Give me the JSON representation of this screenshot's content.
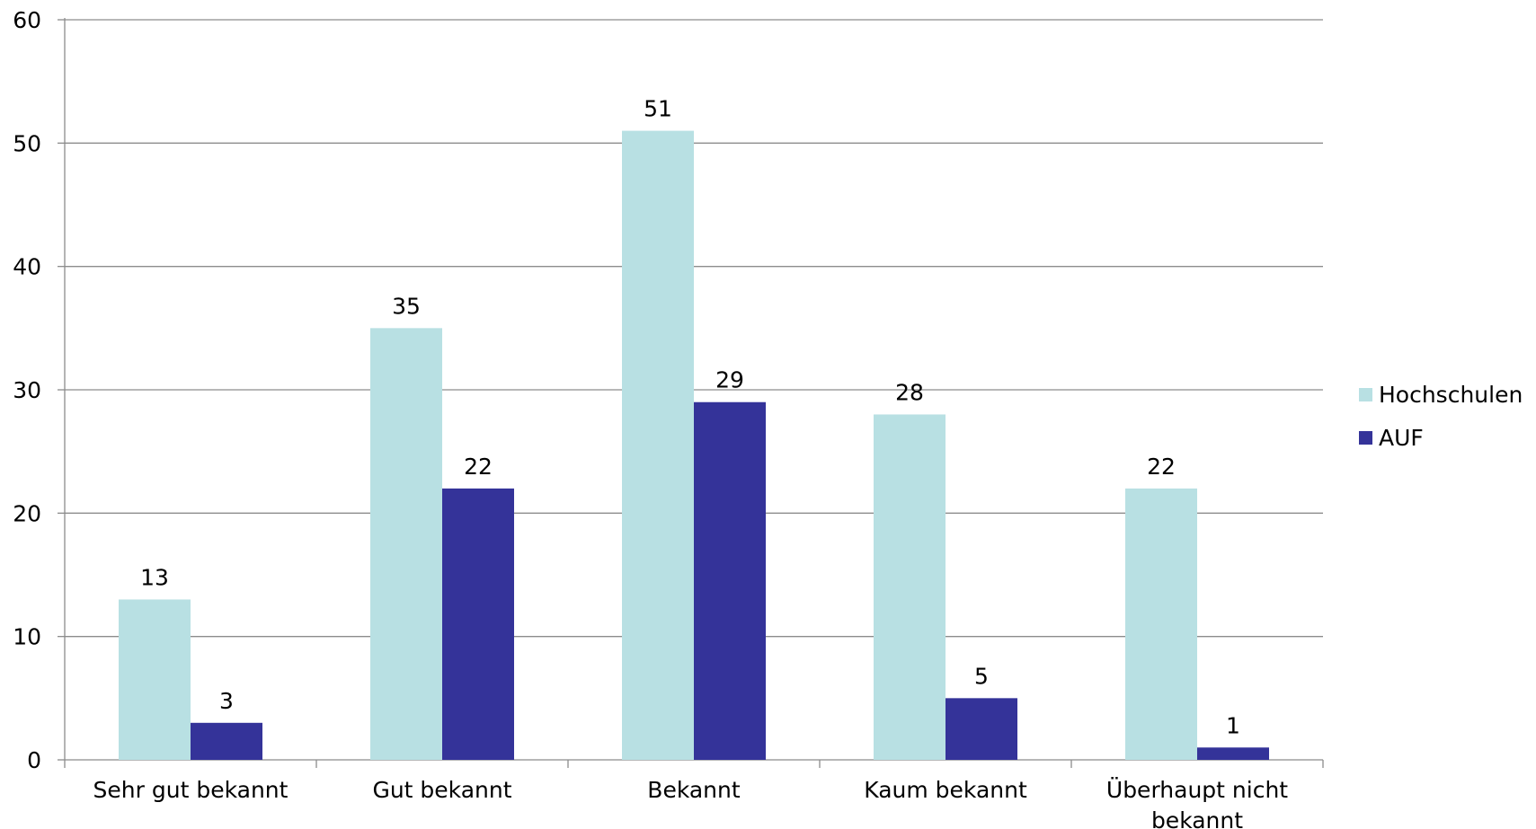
{
  "chart_data": {
    "type": "bar",
    "title": "",
    "xlabel": "",
    "ylabel": "",
    "ylim": [
      0,
      60
    ],
    "yticks": [
      0,
      10,
      20,
      30,
      40,
      50,
      60
    ],
    "grid": true,
    "legend_position": "right",
    "categories": [
      [
        "Sehr gut bekannt"
      ],
      [
        "Gut bekannt"
      ],
      [
        "Bekannt"
      ],
      [
        "Kaum bekannt"
      ],
      [
        "Überhaupt nicht",
        "bekannt"
      ]
    ],
    "series": [
      {
        "name": "Hochschulen",
        "color": "#b8e0e3",
        "values": [
          13,
          35,
          51,
          28,
          22
        ]
      },
      {
        "name": "AUF",
        "color": "#343399",
        "values": [
          3,
          22,
          29,
          5,
          1
        ]
      }
    ]
  }
}
